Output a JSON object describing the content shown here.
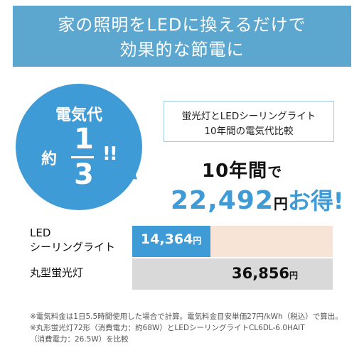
{
  "banner": {
    "line1": "家の照明をLEDに換えるだけで",
    "line2": "効果的な節電に"
  },
  "bubble": {
    "title": "電気代",
    "prefix": "約",
    "numerator": "1",
    "denominator": "3",
    "exclaim": "!!"
  },
  "comparison": {
    "line1": "蛍光灯とLEDシーリングライト",
    "line2": "10年間の電気代比較"
  },
  "headline": {
    "years": "10年間",
    "de": "で",
    "amount": "22,492",
    "yen": "円",
    "otoku": "お得!"
  },
  "rows": [
    {
      "label_line1": "LED",
      "label_line2": "シーリングライト",
      "value": "14,364",
      "unit": "円",
      "fraction_of_max": 0.39,
      "color": "#3f9bd6"
    },
    {
      "label_line1": "丸型蛍光灯",
      "value": "36,856",
      "unit": "円",
      "fraction_of_max": 1.0,
      "color": "#d9d9d9"
    }
  ],
  "notes": [
    "※電気料金は1日5.5時間使用した場合で計算。電気料金目安単価27円/kWh（税込）で算出。",
    "※丸形蛍光灯72形（消費電力：約68W）とLEDシーリングライトCL6DL-6.0HAIT",
    "（消費電力：26.5W）を比較"
  ],
  "colors": {
    "banner": "#5ca7cf",
    "accent": "#3f9bd6",
    "row_bg": "#f8e4d6"
  }
}
